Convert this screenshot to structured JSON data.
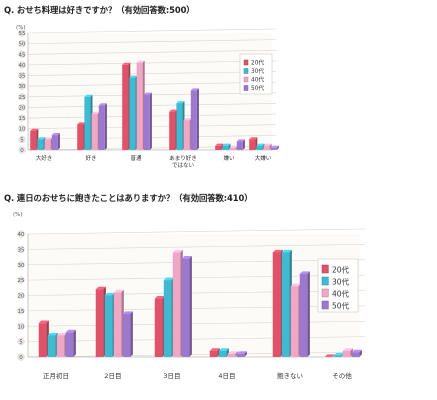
{
  "chart_data": [
    {
      "type": "bar",
      "title": "Q. おせち料理は好きですか？（有効回答数:500）",
      "unit_label": "(%)",
      "ylim": [
        0,
        55
      ],
      "y_ticks": [
        0,
        5,
        10,
        15,
        20,
        25,
        30,
        35,
        40,
        45,
        50,
        55
      ],
      "categories": [
        "大好き",
        "好き",
        "普通",
        "あまり好きではない",
        "嫌い",
        "大嫌い"
      ],
      "series": [
        {
          "name": "20代",
          "color": "#e0526a",
          "values": [
            9,
            12,
            40,
            18,
            2,
            5
          ]
        },
        {
          "name": "30代",
          "color": "#3fbad0",
          "values": [
            5,
            25,
            34,
            22,
            2,
            2
          ]
        },
        {
          "name": "40代",
          "color": "#f2a6c6",
          "values": [
            5,
            17,
            41,
            14,
            1,
            2
          ]
        },
        {
          "name": "50代",
          "color": "#9d78cf",
          "values": [
            7,
            21,
            26,
            28,
            4,
            1
          ]
        }
      ],
      "legend_position": "right",
      "grid": true
    },
    {
      "type": "bar",
      "title": "Q. 連日のおせちに飽きたことはありますか？（有効回答数:410）",
      "unit_label": "(%)",
      "ylim": [
        0,
        40
      ],
      "y_ticks": [
        0,
        5,
        10,
        15,
        20,
        25,
        30,
        35,
        40
      ],
      "categories": [
        "正月初日",
        "2日目",
        "3日目",
        "4日目",
        "飽きない",
        "その他"
      ],
      "series": [
        {
          "name": "20代",
          "color": "#e0526a",
          "values": [
            11,
            22,
            19,
            2,
            34,
            0
          ]
        },
        {
          "name": "30代",
          "color": "#3fbad0",
          "values": [
            7,
            20,
            25,
            2,
            34,
            0.5
          ]
        },
        {
          "name": "40代",
          "color": "#f2a6c6",
          "values": [
            7,
            21,
            34,
            1,
            23,
            2
          ]
        },
        {
          "name": "50代",
          "color": "#9d78cf",
          "values": [
            8,
            14,
            32,
            1,
            27,
            1.5
          ]
        }
      ],
      "legend_position": "right",
      "grid": true
    }
  ]
}
